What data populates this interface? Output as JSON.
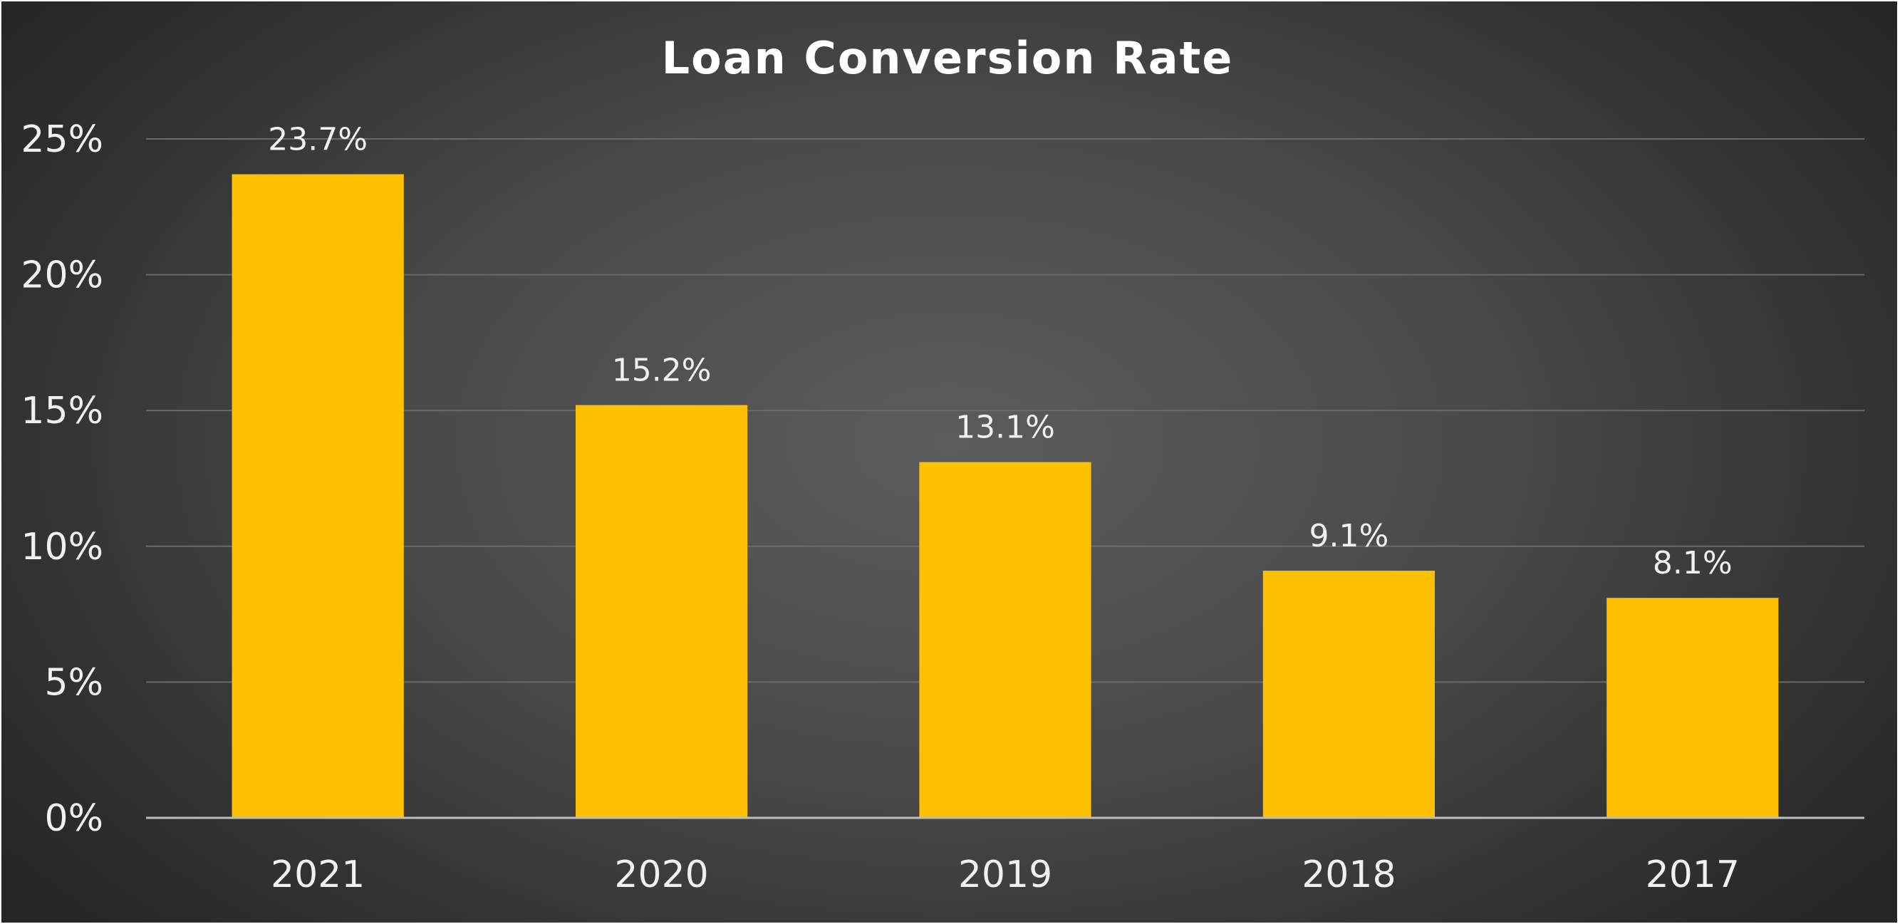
{
  "chart_data": {
    "type": "bar",
    "title": "Loan Conversion Rate",
    "categories": [
      "2021",
      "2020",
      "2019",
      "2018",
      "2017"
    ],
    "values": [
      23.7,
      15.2,
      13.1,
      9.1,
      8.1
    ],
    "value_labels": [
      "23.7%",
      "15.2%",
      "13.1%",
      "9.1%",
      "8.1%"
    ],
    "y_ticks": [
      0,
      5,
      10,
      15,
      20,
      25
    ],
    "y_tick_labels": [
      "0%",
      "5%",
      "10%",
      "15%",
      "20%",
      "25%"
    ],
    "ylim": [
      0,
      25
    ],
    "xlabel": "",
    "ylabel": "",
    "grid": true,
    "legend": "none",
    "colors": {
      "bar": "#FFC000",
      "text": "#F0F0F0",
      "gridline": "#6A6A6A",
      "axis": "#BDBDBD"
    }
  }
}
